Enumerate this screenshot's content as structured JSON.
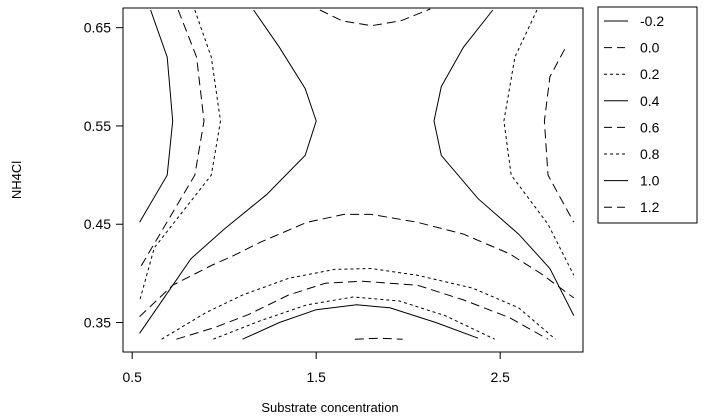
{
  "chart_data": {
    "type": "contour",
    "xlabel": "Substrate concentration",
    "ylabel": "NH4Cl",
    "xlim": [
      0.45,
      2.95
    ],
    "ylim": [
      0.32,
      0.67
    ],
    "xticks": [
      "0.5",
      "1.5",
      "2.5"
    ],
    "yticks": [
      "0.35",
      "0.45",
      "0.55",
      "0.65"
    ],
    "legend_position": "right",
    "levels": [
      {
        "label": "-0.2",
        "style": "solid",
        "segments": []
      },
      {
        "label": "0.0",
        "style": "dashed",
        "segments": [
          [
            [
              1.52,
              0.668
            ],
            [
              1.64,
              0.657
            ],
            [
              1.8,
              0.652
            ],
            [
              1.96,
              0.657
            ],
            [
              2.12,
              0.669
            ]
          ],
          [
            [
              1.71,
              0.333
            ],
            [
              1.84,
              0.334
            ],
            [
              1.97,
              0.333
            ]
          ]
        ]
      },
      {
        "label": "0.2",
        "style": "dotted",
        "segments": []
      },
      {
        "label": "0.4",
        "style": "solid",
        "segments": [
          [
            [
              0.6,
              0.668
            ],
            [
              0.69,
              0.62
            ],
            [
              0.72,
              0.555
            ],
            [
              0.69,
              0.5
            ],
            [
              0.54,
              0.452
            ]
          ],
          [
            [
              1.16,
              0.668
            ],
            [
              1.3,
              0.63
            ],
            [
              1.44,
              0.588
            ],
            [
              1.5,
              0.555
            ],
            [
              1.44,
              0.52
            ],
            [
              1.23,
              0.48
            ],
            [
              1.0,
              0.445
            ],
            [
              0.82,
              0.415
            ],
            [
              0.54,
              0.339
            ]
          ],
          [
            [
              2.46,
              0.668
            ],
            [
              2.3,
              0.63
            ],
            [
              2.18,
              0.59
            ],
            [
              2.14,
              0.555
            ],
            [
              2.18,
              0.52
            ],
            [
              2.38,
              0.476
            ],
            [
              2.6,
              0.44
            ],
            [
              2.77,
              0.405
            ],
            [
              2.9,
              0.357
            ]
          ],
          [
            [
              1.1,
              0.333
            ],
            [
              1.3,
              0.35
            ],
            [
              1.5,
              0.363
            ],
            [
              1.72,
              0.368
            ],
            [
              1.9,
              0.365
            ],
            [
              2.15,
              0.35
            ],
            [
              2.38,
              0.334
            ]
          ]
        ]
      },
      {
        "label": "0.6",
        "style": "dashed",
        "segments": [
          [
            [
              0.75,
              0.668
            ],
            [
              0.85,
              0.62
            ],
            [
              0.89,
              0.555
            ],
            [
              0.84,
              0.5
            ],
            [
              0.54,
              0.405
            ]
          ],
          [
            [
              2.85,
              0.628
            ],
            [
              2.77,
              0.6
            ],
            [
              2.74,
              0.555
            ],
            [
              2.76,
              0.5
            ],
            [
              2.9,
              0.452
            ]
          ],
          [
            [
              0.54,
              0.356
            ],
            [
              0.72,
              0.388
            ],
            [
              0.93,
              0.408
            ],
            [
              1.05,
              0.418
            ],
            [
              1.2,
              0.432
            ],
            [
              1.45,
              0.452
            ],
            [
              1.65,
              0.46
            ],
            [
              1.8,
              0.46
            ],
            [
              2.05,
              0.452
            ],
            [
              2.3,
              0.44
            ],
            [
              2.55,
              0.42
            ],
            [
              2.72,
              0.4
            ],
            [
              2.9,
              0.375
            ]
          ],
          [
            [
              0.74,
              0.333
            ],
            [
              0.95,
              0.345
            ],
            [
              1.13,
              0.358
            ],
            [
              1.35,
              0.378
            ],
            [
              1.55,
              0.39
            ],
            [
              1.75,
              0.392
            ],
            [
              2.05,
              0.388
            ],
            [
              2.3,
              0.373
            ],
            [
              2.55,
              0.355
            ],
            [
              2.76,
              0.333
            ]
          ]
        ]
      },
      {
        "label": "0.8",
        "style": "dotted",
        "segments": [
          [
            [
              0.84,
              0.668
            ],
            [
              0.93,
              0.62
            ],
            [
              0.98,
              0.555
            ],
            [
              0.93,
              0.5
            ],
            [
              0.62,
              0.426
            ],
            [
              0.54,
              0.372
            ]
          ],
          [
            [
              2.7,
              0.668
            ],
            [
              2.58,
              0.62
            ],
            [
              2.52,
              0.555
            ],
            [
              2.56,
              0.5
            ],
            [
              2.76,
              0.45
            ],
            [
              2.9,
              0.398
            ]
          ],
          [
            [
              0.66,
              0.333
            ],
            [
              0.9,
              0.36
            ],
            [
              1.1,
              0.378
            ],
            [
              1.35,
              0.395
            ],
            [
              1.6,
              0.404
            ],
            [
              1.8,
              0.405
            ],
            [
              2.05,
              0.398
            ],
            [
              2.35,
              0.385
            ],
            [
              2.6,
              0.365
            ],
            [
              2.8,
              0.333
            ]
          ],
          [
            [
              0.94,
              0.333
            ],
            [
              1.2,
              0.352
            ],
            [
              1.45,
              0.368
            ],
            [
              1.7,
              0.376
            ],
            [
              1.95,
              0.372
            ],
            [
              2.2,
              0.357
            ],
            [
              2.47,
              0.333
            ]
          ]
        ]
      },
      {
        "label": "1.0",
        "style": "solid",
        "segments": []
      },
      {
        "label": "1.2",
        "style": "dashed",
        "segments": []
      }
    ]
  }
}
